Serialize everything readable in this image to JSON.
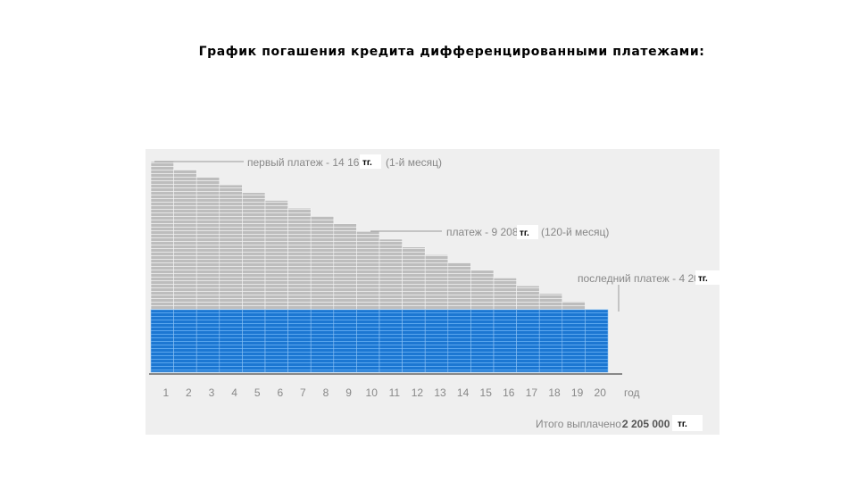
{
  "slide": {
    "title": "График погашения кредита дифференцированными платежами:"
  },
  "chart_data": {
    "type": "bar",
    "categories": [
      "1",
      "2",
      "3",
      "4",
      "5",
      "6",
      "7",
      "8",
      "9",
      "10",
      "11",
      "12",
      "13",
      "14",
      "15",
      "16",
      "17",
      "18",
      "19",
      "20"
    ],
    "x_unit": "год",
    "series": [
      {
        "values": [
          14167,
          13645,
          13123,
          12601,
          12079,
          11557,
          11035,
          10513,
          9991,
          9469,
          8946,
          8424,
          7902,
          7380,
          6858,
          6336,
          5814,
          5292,
          4770,
          4248
        ],
        "color": "#b9b9b9"
      },
      {
        "values": [
          4208,
          4208,
          4208,
          4208,
          4208,
          4208,
          4208,
          4208,
          4208,
          4208,
          4208,
          4208,
          4208,
          4208,
          4208,
          4208,
          4208,
          4208,
          4208,
          4208
        ],
        "color": "#1f7ad4"
      }
    ],
    "ylim": [
      0,
      14167
    ],
    "grid": false,
    "annotations": {
      "first": {
        "label": "первый платеж - 14 167",
        "unit": "тг.",
        "note": "(1-й месяц)"
      },
      "middle": {
        "label": "платеж - 9 208",
        "unit": "тг.",
        "note": "(120-й месяц)"
      },
      "last": {
        "label": "последний платеж - 4 208",
        "unit": "тг."
      }
    },
    "total": {
      "label": "Итого выплачено:",
      "value": "2 205 000",
      "unit": "тг."
    }
  }
}
